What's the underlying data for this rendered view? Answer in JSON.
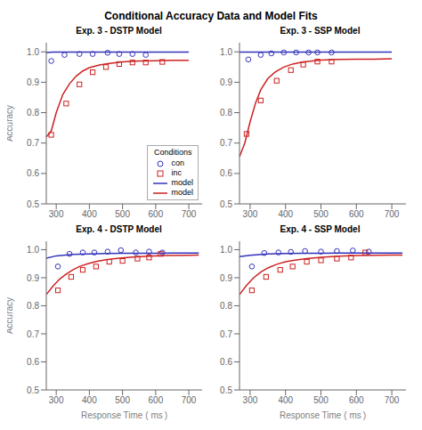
{
  "title": "Conditional Accuracy Data and Model Fits",
  "chart_data": [
    {
      "type": "scatter",
      "title": "Exp. 3 - DSTP Model",
      "y_label": "Accuracy",
      "xlim": [
        270,
        740
      ],
      "ylim": [
        0.5,
        1.03
      ],
      "xticks": [
        300,
        400,
        500,
        600,
        700
      ],
      "yticks": [
        0.5,
        0.6,
        0.7,
        0.8,
        0.9,
        {
          "value": 1.0,
          "label": "1.0"
        }
      ],
      "grid": false,
      "legend": "lower right",
      "legend_title": "Conditions",
      "series": [
        {
          "name": "con",
          "type": "scatter",
          "marker": "circle",
          "color": "#3333bb",
          "x": [
            285,
            325,
            370,
            410,
            455,
            490,
            530,
            570
          ],
          "values": [
            0.97,
            0.99,
            0.993,
            0.993,
            0.997,
            0.993,
            0.993,
            0.99
          ]
        },
        {
          "name": "inc",
          "type": "scatter",
          "marker": "square",
          "color": "#cc2222",
          "x": [
            285,
            330,
            370,
            410,
            450,
            490,
            530,
            570,
            620
          ],
          "values": [
            0.727,
            0.83,
            0.893,
            0.933,
            0.95,
            0.96,
            0.965,
            0.965,
            0.967
          ]
        },
        {
          "name": "model",
          "type": "line",
          "color": "#3333bb",
          "x": [
            270,
            290,
            310,
            330,
            350,
            400,
            450,
            500,
            550,
            600,
            650,
            700
          ],
          "values": [
            0.998,
            0.999,
            0.999,
            0.999,
            0.999,
            0.999,
            0.999,
            0.999,
            0.999,
            0.999,
            0.999,
            0.999
          ]
        },
        {
          "name": "model",
          "type": "line",
          "color": "#cc2222",
          "x": [
            270,
            285,
            300,
            320,
            340,
            360,
            380,
            400,
            430,
            460,
            500,
            550,
            600,
            650,
            700
          ],
          "values": [
            0.72,
            0.74,
            0.8,
            0.86,
            0.895,
            0.92,
            0.937,
            0.948,
            0.957,
            0.962,
            0.967,
            0.97,
            0.971,
            0.972,
            0.972
          ]
        }
      ]
    },
    {
      "type": "scatter",
      "title": "Exp. 3 - SSP Model",
      "xlim": [
        270,
        740
      ],
      "ylim": [
        0.5,
        1.03
      ],
      "xticks": [
        300,
        400,
        500,
        600,
        700
      ],
      "yticks": [
        0.5,
        0.6,
        0.7,
        0.8,
        0.9,
        {
          "value": 1.0,
          "label": "1.0"
        }
      ],
      "grid": false,
      "series": [
        {
          "type": "scatter",
          "marker": "circle",
          "color": "#3333bb",
          "x": [
            295,
            330,
            360,
            395,
            430,
            465,
            490,
            530
          ],
          "values": [
            0.975,
            0.99,
            0.995,
            0.998,
            0.998,
            0.998,
            0.998,
            0.998
          ]
        },
        {
          "type": "scatter",
          "marker": "square",
          "color": "#cc2222",
          "x": [
            290,
            330,
            375,
            415,
            450,
            490,
            530
          ],
          "values": [
            0.73,
            0.84,
            0.905,
            0.94,
            0.958,
            0.968,
            0.968
          ]
        },
        {
          "type": "line",
          "color": "#3333bb",
          "x": [
            270,
            300,
            350,
            400,
            450,
            500,
            550,
            600,
            650,
            700
          ],
          "values": [
            0.999,
            0.999,
            0.999,
            0.999,
            0.999,
            0.999,
            0.999,
            0.999,
            0.999,
            0.999
          ]
        },
        {
          "type": "line",
          "color": "#cc2222",
          "x": [
            270,
            285,
            300,
            315,
            330,
            350,
            370,
            395,
            420,
            450,
            500,
            550,
            600,
            650,
            700
          ],
          "values": [
            0.655,
            0.7,
            0.77,
            0.83,
            0.875,
            0.912,
            0.933,
            0.95,
            0.96,
            0.967,
            0.973,
            0.975,
            0.976,
            0.976,
            0.977
          ]
        }
      ]
    },
    {
      "type": "scatter",
      "title": "Exp. 4 - DSTP Model",
      "y_label": "Accuracy",
      "x_label": "Response Time (  ms )",
      "xlim": [
        270,
        740
      ],
      "ylim": [
        0.5,
        1.03
      ],
      "xticks": [
        300,
        400,
        500,
        600,
        700
      ],
      "yticks": [
        0.5,
        0.6,
        0.7,
        0.8,
        0.9,
        {
          "value": 1.0,
          "label": "1.0"
        }
      ],
      "grid": false,
      "series": [
        {
          "type": "scatter",
          "marker": "circle",
          "color": "#3333bb",
          "x": [
            305,
            340,
            380,
            415,
            455,
            495,
            540,
            580,
            620
          ],
          "values": [
            0.94,
            0.985,
            0.99,
            0.99,
            0.993,
            0.998,
            0.99,
            0.993,
            0.99
          ]
        },
        {
          "type": "scatter",
          "marker": "square",
          "color": "#cc2222",
          "x": [
            305,
            345,
            380,
            420,
            460,
            500,
            545,
            580,
            615
          ],
          "values": [
            0.855,
            0.903,
            0.928,
            0.94,
            0.957,
            0.96,
            0.968,
            0.972,
            0.985
          ]
        },
        {
          "type": "line",
          "color": "#3333bb",
          "x": [
            270,
            300,
            350,
            400,
            450,
            500,
            550,
            600,
            650,
            700,
            730
          ],
          "values": [
            0.97,
            0.978,
            0.983,
            0.985,
            0.986,
            0.987,
            0.987,
            0.987,
            0.988,
            0.988,
            0.988
          ]
        },
        {
          "type": "line",
          "color": "#cc2222",
          "x": [
            270,
            290,
            310,
            330,
            350,
            370,
            395,
            420,
            450,
            490,
            530,
            580,
            630,
            700,
            730
          ],
          "values": [
            0.84,
            0.87,
            0.895,
            0.913,
            0.928,
            0.94,
            0.95,
            0.958,
            0.964,
            0.97,
            0.974,
            0.977,
            0.979,
            0.98,
            0.981
          ]
        }
      ]
    },
    {
      "type": "scatter",
      "title": "Exp. 4 - SSP Model",
      "x_label": "Response Time (  ms )",
      "xlim": [
        270,
        740
      ],
      "ylim": [
        0.5,
        1.03
      ],
      "xticks": [
        300,
        400,
        500,
        600,
        700
      ],
      "yticks": [
        0.5,
        0.6,
        0.7,
        0.8,
        0.9,
        {
          "value": 1.0,
          "label": "1.0"
        }
      ],
      "grid": false,
      "series": [
        {
          "type": "scatter",
          "marker": "circle",
          "color": "#3333bb",
          "x": [
            305,
            340,
            380,
            415,
            455,
            500,
            545,
            590,
            635
          ],
          "values": [
            0.94,
            0.988,
            0.99,
            0.992,
            0.995,
            0.993,
            0.995,
            0.997,
            0.993
          ]
        },
        {
          "type": "scatter",
          "marker": "square",
          "color": "#cc2222",
          "x": [
            305,
            345,
            385,
            420,
            460,
            500,
            545,
            585,
            625
          ],
          "values": [
            0.855,
            0.903,
            0.928,
            0.94,
            0.957,
            0.962,
            0.968,
            0.972,
            0.99
          ]
        },
        {
          "type": "line",
          "color": "#3333bb",
          "x": [
            270,
            300,
            350,
            400,
            450,
            500,
            550,
            600,
            650,
            700,
            730
          ],
          "values": [
            0.975,
            0.98,
            0.985,
            0.986,
            0.987,
            0.987,
            0.988,
            0.988,
            0.988,
            0.988,
            0.988
          ]
        },
        {
          "type": "line",
          "color": "#cc2222",
          "x": [
            270,
            290,
            310,
            330,
            350,
            375,
            400,
            430,
            460,
            500,
            550,
            600,
            650,
            700,
            730
          ],
          "values": [
            0.84,
            0.873,
            0.9,
            0.92,
            0.935,
            0.948,
            0.957,
            0.963,
            0.968,
            0.973,
            0.977,
            0.979,
            0.98,
            0.981,
            0.981
          ]
        }
      ]
    }
  ]
}
